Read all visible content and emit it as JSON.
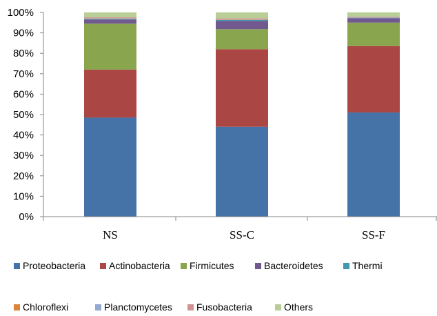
{
  "chart_data": {
    "type": "bar",
    "stacked": true,
    "percent": true,
    "categories": [
      "NS",
      "SS-C",
      "SS-F"
    ],
    "series": [
      {
        "name": "Proteobacteria",
        "color": "#4572A7",
        "values": [
          48.5,
          44.0,
          51.0
        ]
      },
      {
        "name": "Actinobacteria",
        "color": "#AA4643",
        "values": [
          23.5,
          38.0,
          32.5
        ]
      },
      {
        "name": "Firmicutes",
        "color": "#89A54E",
        "values": [
          22.5,
          9.8,
          11.5
        ]
      },
      {
        "name": "Bacteroidetes",
        "color": "#71588F",
        "values": [
          2.0,
          4.0,
          2.2
        ]
      },
      {
        "name": "Thermi",
        "color": "#4198AF",
        "values": [
          0.3,
          0.5,
          0.2
        ]
      },
      {
        "name": "Chloroflexi",
        "color": "#DB843D",
        "values": [
          0.2,
          0.2,
          0.1
        ]
      },
      {
        "name": "Planctomycetes",
        "color": "#93A9CF",
        "values": [
          0.2,
          0.2,
          0.2
        ]
      },
      {
        "name": "Fusobacteria",
        "color": "#D19392",
        "values": [
          0.4,
          0.4,
          0.3
        ]
      },
      {
        "name": "Others",
        "color": "#B9CD96",
        "values": [
          2.4,
          2.9,
          2.0
        ]
      }
    ],
    "ylim": [
      0,
      100
    ],
    "yticks": [
      "0%",
      "10%",
      "20%",
      "30%",
      "40%",
      "50%",
      "60%",
      "70%",
      "80%",
      "90%",
      "100%"
    ],
    "xlabel": "",
    "ylabel": "",
    "title": "",
    "grid": false,
    "legend_position": "bottom"
  }
}
